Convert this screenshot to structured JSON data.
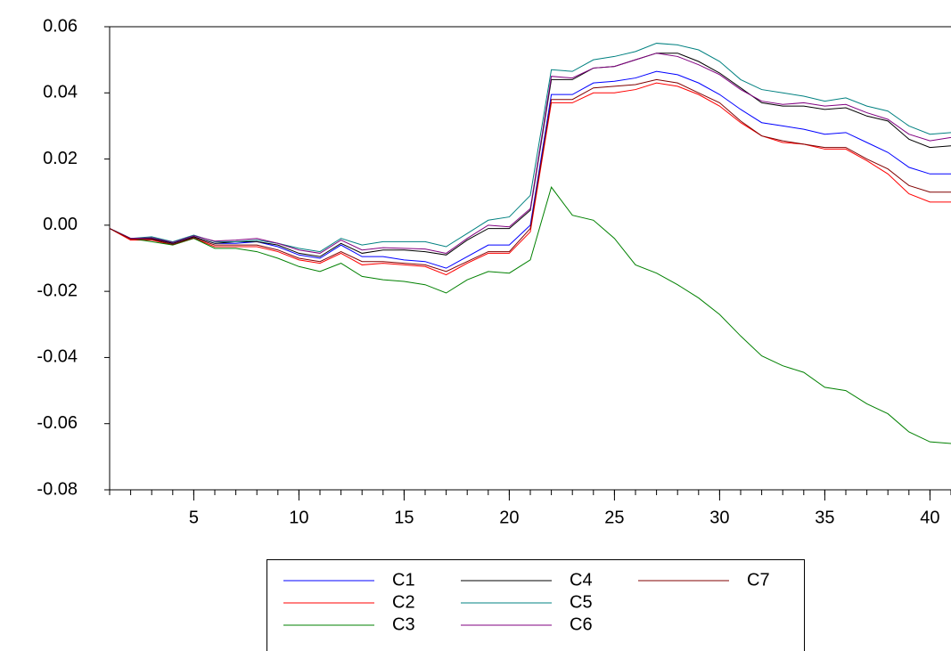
{
  "chart_data": {
    "type": "line",
    "x": [
      1,
      2,
      3,
      4,
      5,
      6,
      7,
      8,
      9,
      10,
      11,
      12,
      13,
      14,
      15,
      16,
      17,
      18,
      19,
      20,
      21,
      22,
      23,
      24,
      25,
      26,
      27,
      28,
      29,
      30,
      31,
      32,
      33,
      34,
      35,
      36,
      37,
      38,
      39,
      40,
      41
    ],
    "series": [
      {
        "name": "C1",
        "color": "#0000ff",
        "values": [
          -0.001,
          -0.004,
          -0.004,
          -0.0055,
          -0.0035,
          -0.0055,
          -0.0055,
          -0.005,
          -0.0065,
          -0.009,
          -0.01,
          -0.006,
          -0.0095,
          -0.0095,
          -0.0105,
          -0.011,
          -0.013,
          -0.0095,
          -0.006,
          -0.006,
          0.0,
          0.0395,
          0.0395,
          0.043,
          0.0435,
          0.0445,
          0.0465,
          0.0455,
          0.043,
          0.0395,
          0.035,
          0.031,
          0.03,
          0.029,
          0.0275,
          0.028,
          0.025,
          0.022,
          0.0175,
          0.0155,
          0.0155
        ]
      },
      {
        "name": "C2",
        "color": "#ff0000",
        "values": [
          -0.001,
          -0.0045,
          -0.0045,
          -0.006,
          -0.004,
          -0.0065,
          -0.0065,
          -0.0065,
          -0.008,
          -0.0105,
          -0.0115,
          -0.0085,
          -0.012,
          -0.0115,
          -0.012,
          -0.0125,
          -0.015,
          -0.0115,
          -0.0085,
          -0.0085,
          -0.002,
          0.037,
          0.037,
          0.04,
          0.04,
          0.041,
          0.043,
          0.042,
          0.0395,
          0.036,
          0.031,
          0.027,
          0.025,
          0.0245,
          0.023,
          0.023,
          0.0195,
          0.0155,
          0.0095,
          0.007,
          0.007
        ]
      },
      {
        "name": "C3",
        "color": "#008000",
        "values": [
          -0.001,
          -0.004,
          -0.005,
          -0.006,
          -0.004,
          -0.007,
          -0.007,
          -0.008,
          -0.01,
          -0.0125,
          -0.014,
          -0.0115,
          -0.0155,
          -0.0165,
          -0.017,
          -0.018,
          -0.0205,
          -0.0165,
          -0.014,
          -0.0145,
          -0.0105,
          0.0115,
          0.003,
          0.0015,
          -0.004,
          -0.012,
          -0.0145,
          -0.018,
          -0.022,
          -0.027,
          -0.0335,
          -0.0395,
          -0.0425,
          -0.0445,
          -0.049,
          -0.05,
          -0.054,
          -0.057,
          -0.0625,
          -0.0655,
          -0.066
        ]
      },
      {
        "name": "C4",
        "color": "#000000",
        "values": [
          -0.001,
          -0.004,
          -0.004,
          -0.0055,
          -0.0035,
          -0.0055,
          -0.005,
          -0.005,
          -0.006,
          -0.0085,
          -0.0095,
          -0.0055,
          -0.0085,
          -0.0075,
          -0.0075,
          -0.008,
          -0.009,
          -0.0045,
          -0.001,
          -0.001,
          0.0045,
          0.044,
          0.044,
          0.0475,
          0.048,
          0.05,
          0.052,
          0.052,
          0.0495,
          0.046,
          0.0415,
          0.037,
          0.036,
          0.036,
          0.035,
          0.0355,
          0.033,
          0.0315,
          0.026,
          0.0235,
          0.024
        ]
      },
      {
        "name": "C5",
        "color": "#008080",
        "values": [
          -0.001,
          -0.004,
          -0.0035,
          -0.005,
          -0.003,
          -0.005,
          -0.005,
          -0.0045,
          -0.0055,
          -0.007,
          -0.008,
          -0.004,
          -0.006,
          -0.005,
          -0.005,
          -0.005,
          -0.0065,
          -0.0025,
          0.0015,
          0.0025,
          0.009,
          0.047,
          0.0465,
          0.05,
          0.051,
          0.0525,
          0.055,
          0.0545,
          0.053,
          0.0495,
          0.044,
          0.041,
          0.04,
          0.039,
          0.0375,
          0.0385,
          0.036,
          0.0345,
          0.03,
          0.0275,
          0.028
        ]
      },
      {
        "name": "C6",
        "color": "#800080",
        "values": [
          -0.001,
          -0.004,
          -0.0038,
          -0.0052,
          -0.0032,
          -0.0048,
          -0.0045,
          -0.004,
          -0.0055,
          -0.0075,
          -0.0085,
          -0.0045,
          -0.0075,
          -0.0068,
          -0.007,
          -0.0072,
          -0.0085,
          -0.004,
          0.0,
          -0.0005,
          0.005,
          0.045,
          0.0445,
          0.0475,
          0.048,
          0.05,
          0.052,
          0.051,
          0.0485,
          0.0455,
          0.041,
          0.0375,
          0.0365,
          0.037,
          0.036,
          0.0365,
          0.034,
          0.032,
          0.0275,
          0.0255,
          0.0265
        ]
      },
      {
        "name": "C7",
        "color": "#800000",
        "values": [
          -0.001,
          -0.0042,
          -0.0043,
          -0.0058,
          -0.0038,
          -0.006,
          -0.006,
          -0.006,
          -0.0075,
          -0.01,
          -0.011,
          -0.008,
          -0.011,
          -0.011,
          -0.0115,
          -0.012,
          -0.014,
          -0.011,
          -0.008,
          -0.008,
          -0.001,
          0.038,
          0.038,
          0.0415,
          0.042,
          0.0425,
          0.044,
          0.043,
          0.04,
          0.037,
          0.0315,
          0.027,
          0.0255,
          0.0245,
          0.0235,
          0.0235,
          0.02,
          0.017,
          0.012,
          0.01,
          0.01
        ]
      }
    ],
    "xlim": [
      1,
      41
    ],
    "xticks": [
      5,
      10,
      15,
      20,
      25,
      30,
      35,
      40
    ],
    "ylim": [
      -0.08,
      0.06
    ],
    "yticks": [
      0.06,
      0.04,
      0.02,
      {
        "value": 0,
        "label": "0.00"
      },
      -0.02,
      -0.04,
      -0.06,
      -0.08
    ],
    "legend": "bottom"
  }
}
